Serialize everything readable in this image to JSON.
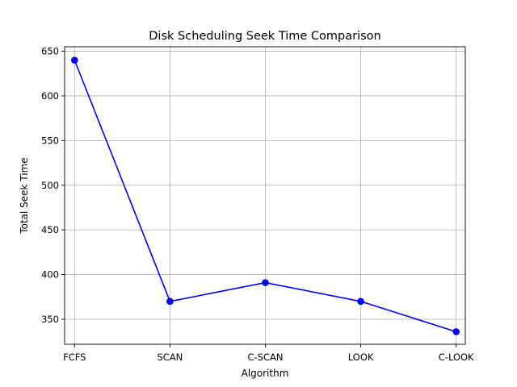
{
  "chart_data": {
    "type": "line",
    "title": "Disk Scheduling Seek Time Comparison",
    "xlabel": "Algorithm",
    "ylabel": "Total Seek Time",
    "categories": [
      "FCFS",
      "SCAN",
      "C-SCAN",
      "LOOK",
      "C-LOOK"
    ],
    "series": [
      {
        "values": [
          640,
          370,
          391,
          370,
          336
        ],
        "color": "#0000ff",
        "marker": "circle"
      }
    ],
    "ylim": [
      322,
      655
    ],
    "yticks": [
      350,
      400,
      450,
      500,
      550,
      600,
      650
    ],
    "grid": true,
    "legend": "none"
  }
}
